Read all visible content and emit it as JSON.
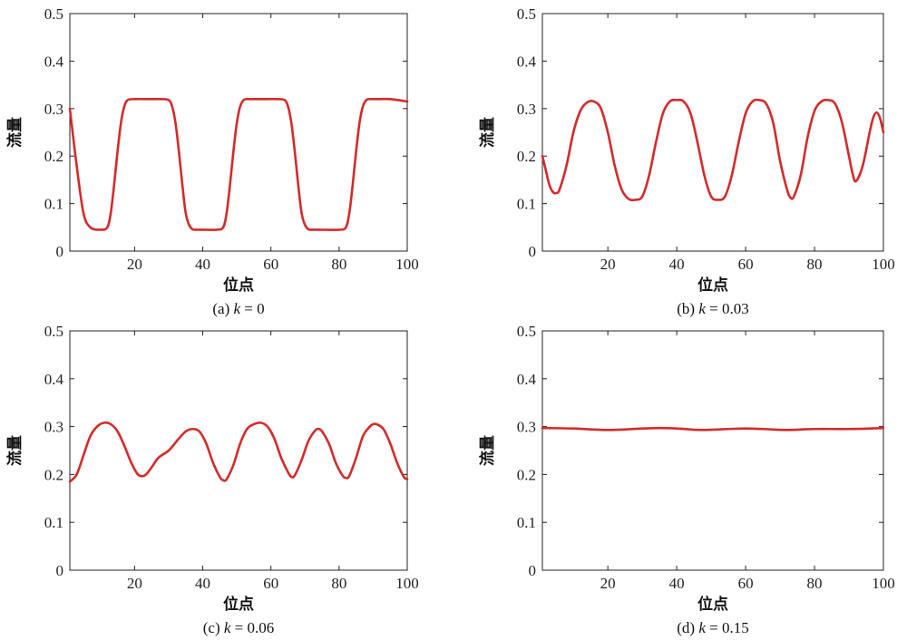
{
  "colors": {
    "line": "#d42a2a",
    "axis": "#222222"
  },
  "chart_data": [
    {
      "type": "line",
      "caption_prefix": "(a) ",
      "caption_var": "k",
      "caption_value": " = 0",
      "xlabel": "位点",
      "ylabel": "流量",
      "xlim": [
        1,
        100
      ],
      "ylim": [
        0,
        0.5
      ],
      "xticks": [
        20,
        40,
        60,
        80,
        100
      ],
      "yticks": [
        0,
        0.1,
        0.2,
        0.3,
        0.4,
        0.5
      ],
      "ytick_labels": [
        "0",
        "0.1",
        "0.2",
        "0.3",
        "0.4",
        "0.5"
      ],
      "grid": false,
      "series": [
        {
          "x": [
            1,
            3,
            5,
            7,
            10,
            12,
            13,
            14,
            15,
            16,
            17,
            18,
            20,
            25,
            28,
            30,
            31,
            32,
            33,
            34,
            35,
            36,
            37,
            38,
            40,
            44,
            46,
            47,
            48,
            49,
            50,
            51,
            52,
            53,
            54,
            55,
            57,
            62,
            64,
            65,
            66,
            67,
            68,
            69,
            70,
            71,
            72,
            74,
            80,
            82,
            83,
            84,
            85,
            86,
            87,
            88,
            89,
            90,
            92,
            95,
            100
          ],
          "y": [
            0.3,
            0.18,
            0.08,
            0.05,
            0.045,
            0.05,
            0.08,
            0.14,
            0.21,
            0.27,
            0.305,
            0.318,
            0.32,
            0.32,
            0.32,
            0.318,
            0.305,
            0.27,
            0.21,
            0.14,
            0.08,
            0.055,
            0.046,
            0.045,
            0.045,
            0.045,
            0.05,
            0.08,
            0.14,
            0.21,
            0.27,
            0.305,
            0.318,
            0.32,
            0.32,
            0.32,
            0.32,
            0.32,
            0.318,
            0.305,
            0.27,
            0.21,
            0.14,
            0.08,
            0.055,
            0.046,
            0.045,
            0.045,
            0.045,
            0.05,
            0.08,
            0.14,
            0.21,
            0.27,
            0.305,
            0.318,
            0.32,
            0.32,
            0.32,
            0.32,
            0.315
          ]
        }
      ]
    },
    {
      "type": "line",
      "caption_prefix": "(b) ",
      "caption_var": "k",
      "caption_value": " = 0.03",
      "xlabel": "位点",
      "ylabel": "流量",
      "xlim": [
        1,
        100
      ],
      "ylim": [
        0,
        0.5
      ],
      "xticks": [
        20,
        40,
        60,
        80,
        100
      ],
      "yticks": [
        0,
        0.1,
        0.2,
        0.3,
        0.4,
        0.5
      ],
      "ytick_labels": [
        "0",
        "0.1",
        "0.2",
        "0.3",
        "0.4",
        "0.5"
      ],
      "grid": false,
      "series": [
        {
          "x": [
            1,
            2,
            3,
            4,
            5,
            6,
            8,
            10,
            12,
            14,
            16,
            18,
            20,
            22,
            24,
            26,
            28,
            30,
            32,
            34,
            36,
            38,
            40,
            42,
            44,
            46,
            48,
            50,
            52,
            54,
            56,
            58,
            60,
            62,
            64,
            66,
            68,
            70,
            72,
            73,
            74,
            76,
            78,
            80,
            82,
            84,
            86,
            88,
            90,
            91,
            92,
            94,
            96,
            97,
            98,
            99,
            100
          ],
          "y": [
            0.2,
            0.17,
            0.14,
            0.125,
            0.122,
            0.13,
            0.18,
            0.25,
            0.295,
            0.313,
            0.315,
            0.3,
            0.25,
            0.18,
            0.13,
            0.11,
            0.108,
            0.115,
            0.16,
            0.23,
            0.29,
            0.315,
            0.318,
            0.315,
            0.29,
            0.23,
            0.16,
            0.115,
            0.108,
            0.115,
            0.16,
            0.23,
            0.29,
            0.315,
            0.318,
            0.31,
            0.27,
            0.19,
            0.13,
            0.113,
            0.115,
            0.16,
            0.24,
            0.295,
            0.315,
            0.318,
            0.31,
            0.27,
            0.2,
            0.165,
            0.147,
            0.18,
            0.25,
            0.28,
            0.292,
            0.28,
            0.25
          ]
        }
      ]
    },
    {
      "type": "line",
      "caption_prefix": "(c) ",
      "caption_var": "k",
      "caption_value": " = 0.06",
      "xlabel": "位点",
      "ylabel": "流量",
      "xlim": [
        1,
        100
      ],
      "ylim": [
        0,
        0.5
      ],
      "xticks": [
        20,
        40,
        60,
        80,
        100
      ],
      "yticks": [
        0,
        0.1,
        0.2,
        0.3,
        0.4,
        0.5
      ],
      "ytick_labels": [
        "0",
        "0.1",
        "0.2",
        "0.3",
        "0.4",
        "0.5"
      ],
      "grid": false,
      "series": [
        {
          "x": [
            1,
            3,
            5,
            7,
            9,
            11,
            13,
            15,
            17,
            19,
            21,
            23,
            25,
            27,
            30,
            33,
            35,
            37,
            39,
            41,
            43,
            45,
            46,
            47,
            49,
            51,
            53,
            55,
            57,
            59,
            61,
            63,
            65,
            66,
            67,
            69,
            71,
            73,
            74,
            75,
            77,
            79,
            81,
            82,
            83,
            85,
            87,
            89,
            90,
            91,
            93,
            95,
            97,
            99,
            100
          ],
          "y": [
            0.185,
            0.2,
            0.24,
            0.28,
            0.3,
            0.308,
            0.305,
            0.29,
            0.26,
            0.225,
            0.2,
            0.198,
            0.215,
            0.235,
            0.25,
            0.275,
            0.29,
            0.295,
            0.29,
            0.265,
            0.225,
            0.195,
            0.188,
            0.19,
            0.22,
            0.265,
            0.295,
            0.305,
            0.308,
            0.3,
            0.275,
            0.235,
            0.205,
            0.195,
            0.198,
            0.23,
            0.27,
            0.292,
            0.295,
            0.29,
            0.265,
            0.225,
            0.198,
            0.193,
            0.197,
            0.235,
            0.28,
            0.3,
            0.305,
            0.305,
            0.295,
            0.265,
            0.225,
            0.195,
            0.19
          ]
        }
      ]
    },
    {
      "type": "line",
      "caption_prefix": "(d) ",
      "caption_var": "k",
      "caption_value": " = 0.15",
      "xlabel": "位点",
      "ylabel": "流量",
      "xlim": [
        1,
        100
      ],
      "ylim": [
        0,
        0.5
      ],
      "xticks": [
        20,
        40,
        60,
        80,
        100
      ],
      "yticks": [
        0,
        0.1,
        0.2,
        0.3,
        0.4,
        0.5
      ],
      "ytick_labels": [
        "0",
        "0.1",
        "0.2",
        "0.3",
        "0.4",
        "0.5"
      ],
      "grid": false,
      "series": [
        {
          "x": [
            1,
            10,
            20,
            30,
            35,
            40,
            47,
            55,
            60,
            65,
            72,
            80,
            90,
            100
          ],
          "y": [
            0.297,
            0.296,
            0.293,
            0.296,
            0.297,
            0.296,
            0.293,
            0.295,
            0.296,
            0.295,
            0.293,
            0.295,
            0.295,
            0.297
          ]
        }
      ]
    }
  ]
}
